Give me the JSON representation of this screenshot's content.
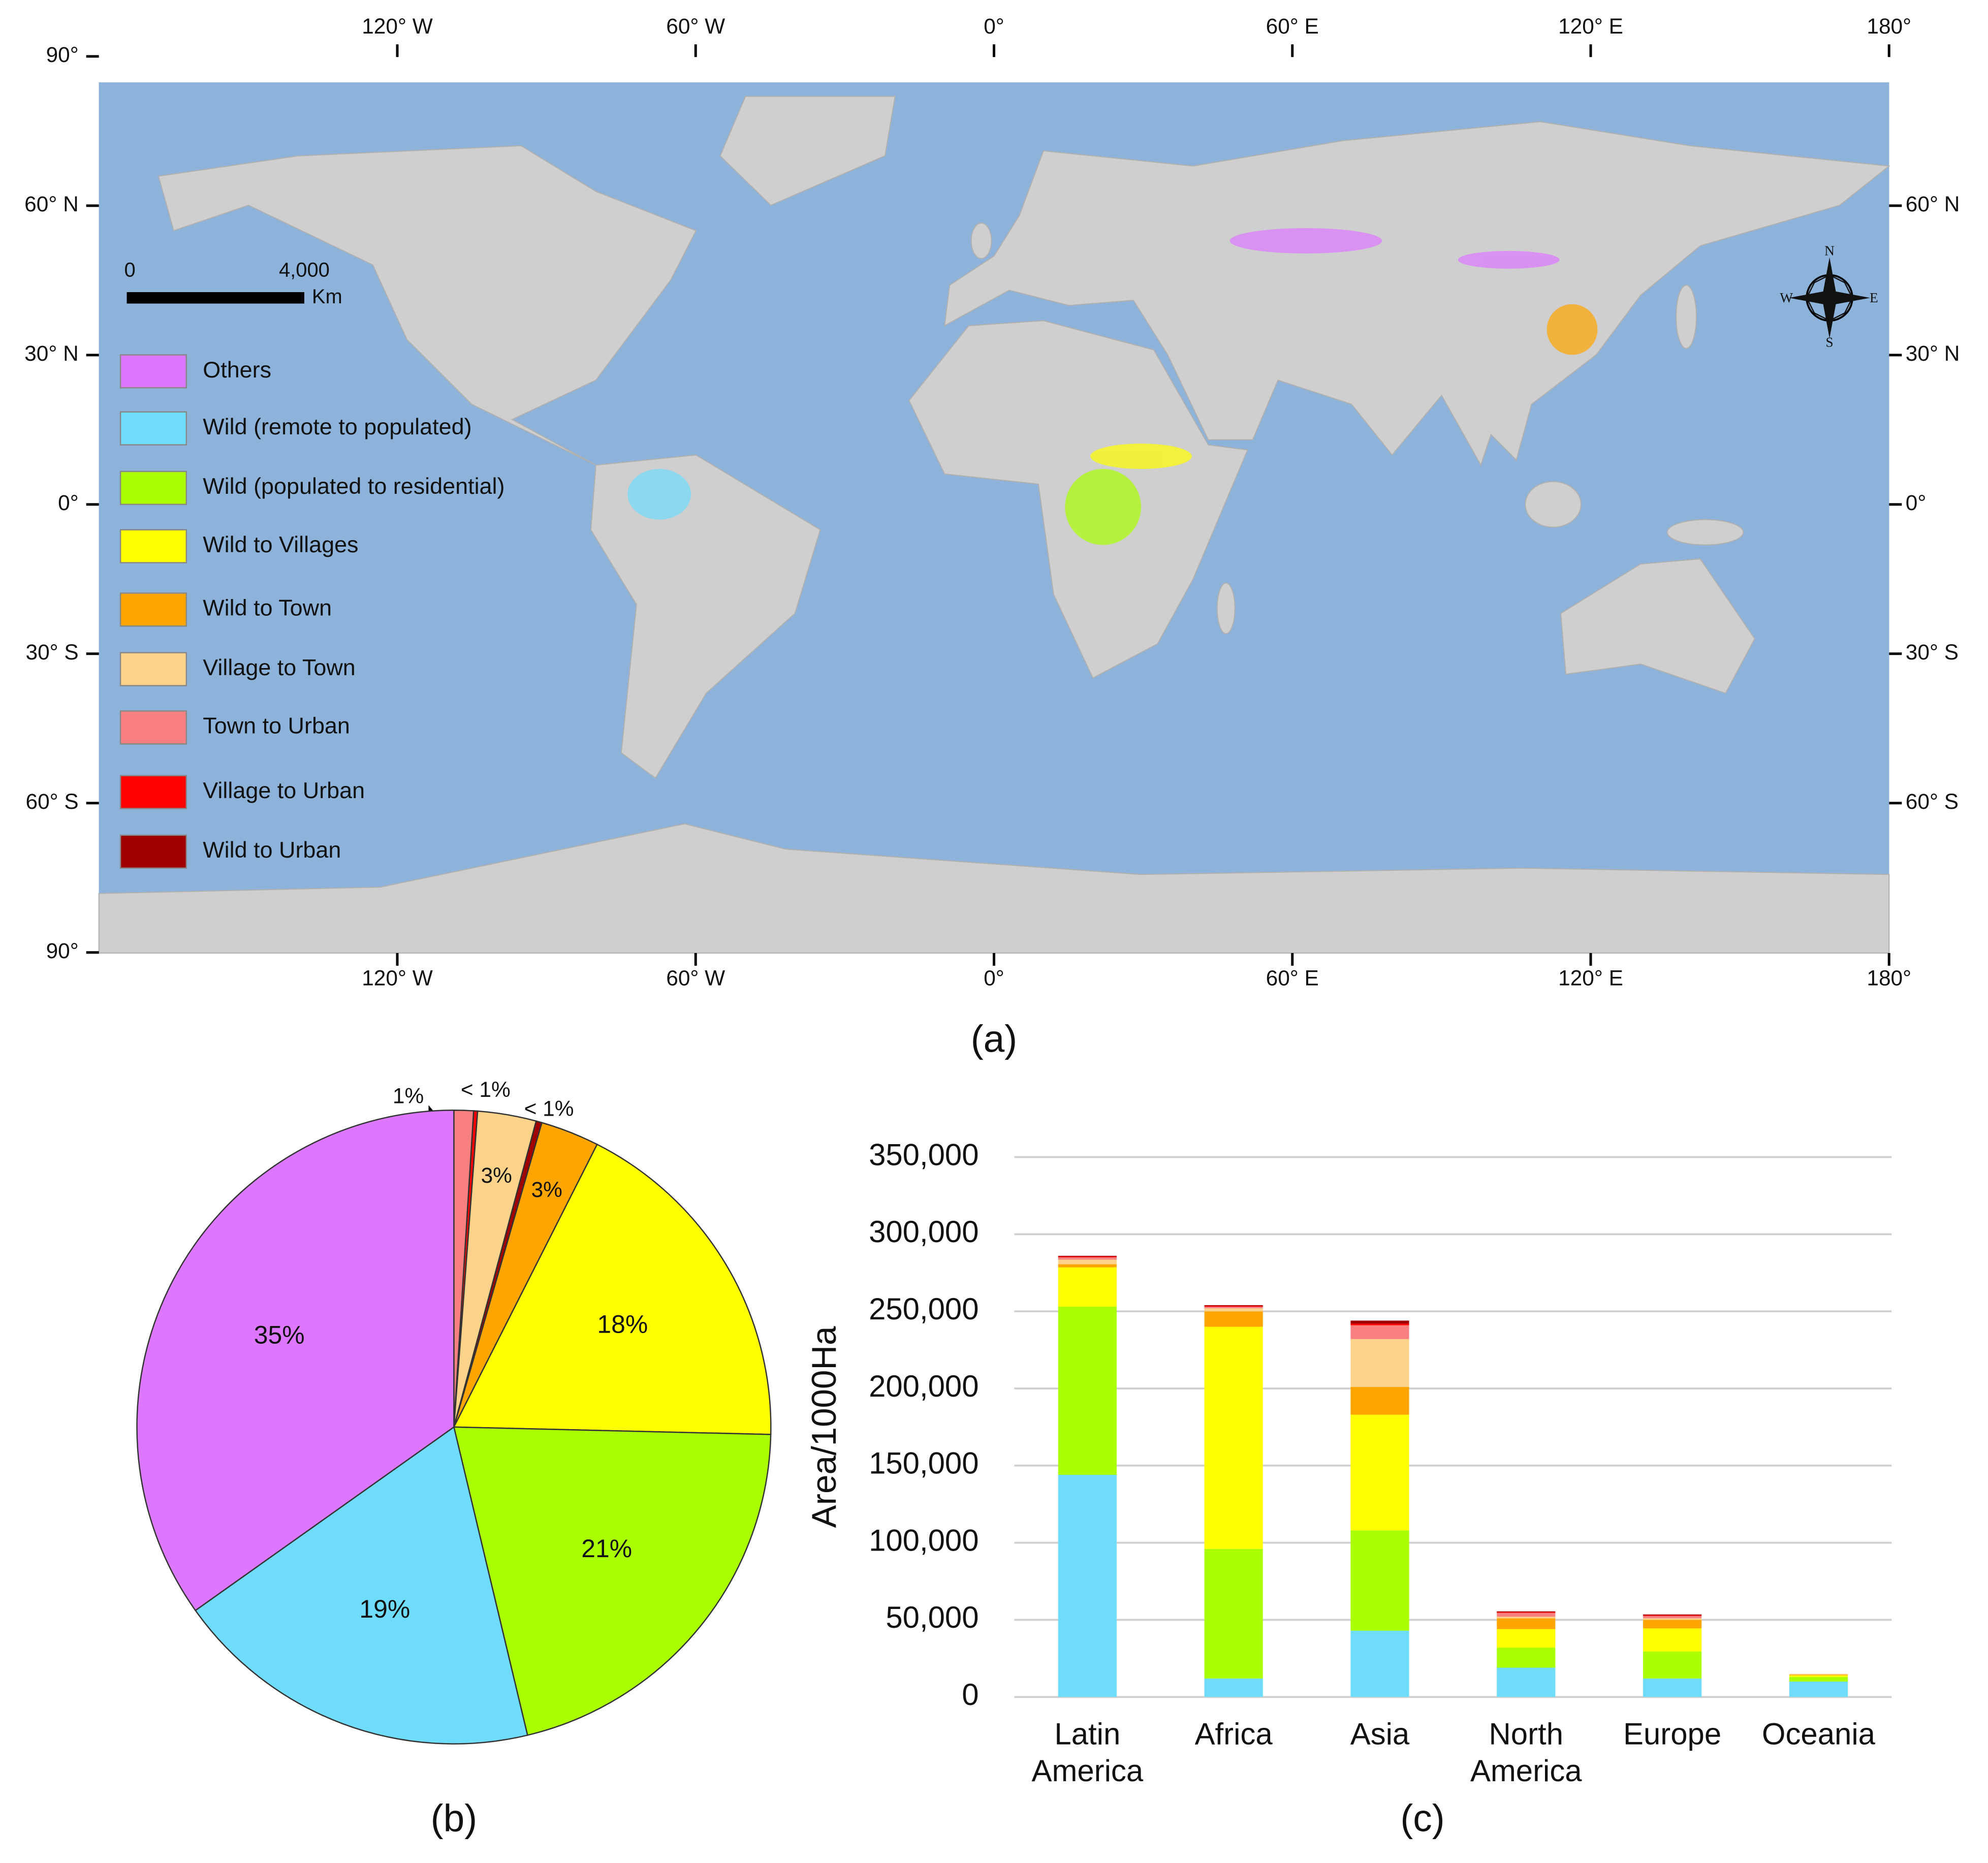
{
  "map": {
    "caption": "(a)",
    "lon_ticks": [
      {
        "value": -120,
        "label": "120° W"
      },
      {
        "value": -60,
        "label": "60° W"
      },
      {
        "value": 0,
        "label": "0°"
      },
      {
        "value": 60,
        "label": "60° E"
      },
      {
        "value": 120,
        "label": "120° E"
      },
      {
        "value": 180,
        "label": "180°"
      }
    ],
    "lat_ticks": [
      {
        "value": 90,
        "label": "90°"
      },
      {
        "value": 60,
        "label": "60° N"
      },
      {
        "value": 30,
        "label": "30° N"
      },
      {
        "value": 0,
        "label": "0°"
      },
      {
        "value": -30,
        "label": "30° S"
      },
      {
        "value": -60,
        "label": "60° S"
      },
      {
        "value": -90,
        "label": "90°"
      }
    ],
    "scale_bar": {
      "start": "0",
      "end": "4,000",
      "unit": "Km"
    },
    "compass": {
      "n": "N",
      "s": "S",
      "e": "E",
      "w": "W"
    }
  },
  "chart_data": [
    {
      "type": "pie",
      "caption": "(b)",
      "categories": [
        "Others",
        "Wild (remote to populated)",
        "Wild (populated to residential)",
        "Wild to Villages",
        "Wild  to Town",
        "Village to Town",
        "Town to Urban",
        "Village to Urban",
        "Wild to Urban"
      ],
      "values": [
        35,
        19,
        21,
        18,
        3,
        3,
        1,
        0.2,
        0.3
      ],
      "value_labels": [
        "35%",
        "19%",
        "21%",
        "18%",
        "3%",
        "3%",
        "1%",
        "< 1%",
        "< 1%"
      ],
      "colors": [
        "#dd77ff",
        "#6fdcfb",
        "#aaff00",
        "#ffff00",
        "#ffa500",
        "#fdd38c",
        "#f88080",
        "#ff0000",
        "#a00000"
      ]
    },
    {
      "type": "bar",
      "stacked": true,
      "caption": "(c)",
      "ylabel": "Area/1000Ha",
      "categories": [
        "Latin America",
        "Africa",
        "Asia",
        "North America",
        "Europe",
        "Oceania"
      ],
      "series": [
        {
          "name": "Wild (remote to populated)",
          "color": "#6fdcfb",
          "values": [
            144000,
            12000,
            43000,
            19000,
            12000,
            10000
          ]
        },
        {
          "name": "Wild (populated to residential)",
          "color": "#aaff00",
          "values": [
            109000,
            84000,
            65000,
            13000,
            17500,
            3000
          ]
        },
        {
          "name": "Wild to Villages",
          "color": "#ffff00",
          "values": [
            25500,
            144000,
            75000,
            12000,
            15000,
            1000
          ]
        },
        {
          "name": "Wild  to Town",
          "color": "#ffa500",
          "values": [
            2000,
            10000,
            18000,
            7000,
            5500,
            500
          ]
        },
        {
          "name": "Village to Town",
          "color": "#fdd38c",
          "values": [
            3000,
            2000,
            31000,
            1000,
            1000,
            500
          ]
        },
        {
          "name": "Town to Urban",
          "color": "#f88080",
          "values": [
            1500,
            1000,
            9000,
            2500,
            1500,
            0
          ]
        },
        {
          "name": "Village to Urban",
          "color": "#ff0000",
          "values": [
            500,
            500,
            1000,
            500,
            500,
            0
          ]
        },
        {
          "name": "Wild to Urban",
          "color": "#a00000",
          "values": [
            500,
            500,
            2000,
            500,
            500,
            0
          ]
        }
      ],
      "ylim": [
        0,
        350000
      ],
      "yticks": [
        0,
        {
          "value": 50000,
          "label": "50,000"
        },
        {
          "value": 100000,
          "label": "100,000"
        },
        {
          "value": 150000,
          "label": "150,000"
        },
        {
          "value": 200000,
          "label": "200,000"
        },
        {
          "value": 250000,
          "label": "250,000"
        },
        {
          "value": 300000,
          "label": "300,000"
        },
        {
          "value": 350000,
          "label": "350,000"
        }
      ],
      "grid": true
    }
  ]
}
